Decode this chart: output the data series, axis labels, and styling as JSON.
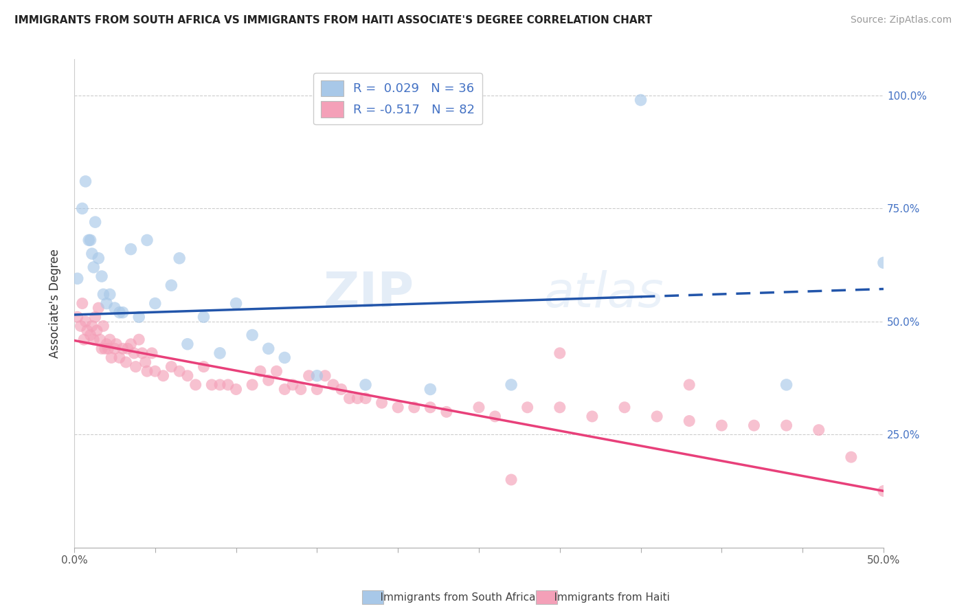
{
  "title": "IMMIGRANTS FROM SOUTH AFRICA VS IMMIGRANTS FROM HAITI ASSOCIATE'S DEGREE CORRELATION CHART",
  "source": "Source: ZipAtlas.com",
  "ylabel": "Associate's Degree",
  "r_south_africa": 0.029,
  "n_south_africa": 36,
  "r_haiti": -0.517,
  "n_haiti": 82,
  "xmin": 0.0,
  "xmax": 0.5,
  "ymin": 0.0,
  "ymax": 1.08,
  "color_south_africa": "#a8c8e8",
  "color_haiti": "#f4a0b8",
  "line_color_south_africa": "#2255aa",
  "line_color_haiti": "#e8407a",
  "legend_fill_sa": "#a8c8e8",
  "legend_fill_haiti": "#f4a0b8",
  "sa_line_x0": 0.0,
  "sa_line_x1": 0.5,
  "sa_line_y0": 0.515,
  "sa_line_y1": 0.572,
  "sa_line_solid_end": 0.35,
  "haiti_line_x0": 0.0,
  "haiti_line_x1": 0.5,
  "haiti_line_y0": 0.458,
  "haiti_line_y1": 0.125,
  "sa_x": [
    0.002,
    0.005,
    0.007,
    0.009,
    0.01,
    0.011,
    0.012,
    0.013,
    0.015,
    0.017,
    0.018,
    0.02,
    0.022,
    0.025,
    0.028,
    0.03,
    0.035,
    0.04,
    0.045,
    0.05,
    0.06,
    0.065,
    0.07,
    0.08,
    0.09,
    0.1,
    0.11,
    0.12,
    0.13,
    0.15,
    0.18,
    0.22,
    0.27,
    0.35,
    0.44,
    0.5
  ],
  "sa_y": [
    0.595,
    0.75,
    0.81,
    0.68,
    0.68,
    0.65,
    0.62,
    0.72,
    0.64,
    0.6,
    0.56,
    0.54,
    0.56,
    0.53,
    0.52,
    0.52,
    0.66,
    0.51,
    0.68,
    0.54,
    0.58,
    0.64,
    0.45,
    0.51,
    0.43,
    0.54,
    0.47,
    0.44,
    0.42,
    0.38,
    0.36,
    0.35,
    0.36,
    0.99,
    0.36,
    0.63
  ],
  "haiti_x": [
    0.002,
    0.004,
    0.005,
    0.006,
    0.007,
    0.008,
    0.01,
    0.011,
    0.012,
    0.013,
    0.014,
    0.015,
    0.016,
    0.017,
    0.018,
    0.019,
    0.02,
    0.021,
    0.022,
    0.023,
    0.025,
    0.026,
    0.028,
    0.03,
    0.032,
    0.033,
    0.035,
    0.037,
    0.038,
    0.04,
    0.042,
    0.044,
    0.045,
    0.048,
    0.05,
    0.055,
    0.06,
    0.065,
    0.07,
    0.075,
    0.08,
    0.085,
    0.09,
    0.095,
    0.1,
    0.11,
    0.115,
    0.12,
    0.125,
    0.13,
    0.135,
    0.14,
    0.145,
    0.15,
    0.155,
    0.16,
    0.165,
    0.17,
    0.175,
    0.18,
    0.19,
    0.2,
    0.21,
    0.22,
    0.23,
    0.25,
    0.26,
    0.27,
    0.28,
    0.3,
    0.32,
    0.34,
    0.36,
    0.38,
    0.4,
    0.42,
    0.44,
    0.46,
    0.48,
    0.5,
    0.3,
    0.38
  ],
  "haiti_y": [
    0.51,
    0.49,
    0.54,
    0.46,
    0.5,
    0.48,
    0.47,
    0.49,
    0.46,
    0.51,
    0.48,
    0.53,
    0.46,
    0.44,
    0.49,
    0.44,
    0.45,
    0.44,
    0.46,
    0.42,
    0.44,
    0.45,
    0.42,
    0.44,
    0.41,
    0.44,
    0.45,
    0.43,
    0.4,
    0.46,
    0.43,
    0.41,
    0.39,
    0.43,
    0.39,
    0.38,
    0.4,
    0.39,
    0.38,
    0.36,
    0.4,
    0.36,
    0.36,
    0.36,
    0.35,
    0.36,
    0.39,
    0.37,
    0.39,
    0.35,
    0.36,
    0.35,
    0.38,
    0.35,
    0.38,
    0.36,
    0.35,
    0.33,
    0.33,
    0.33,
    0.32,
    0.31,
    0.31,
    0.31,
    0.3,
    0.31,
    0.29,
    0.15,
    0.31,
    0.31,
    0.29,
    0.31,
    0.29,
    0.28,
    0.27,
    0.27,
    0.27,
    0.26,
    0.2,
    0.125,
    0.43,
    0.36
  ]
}
